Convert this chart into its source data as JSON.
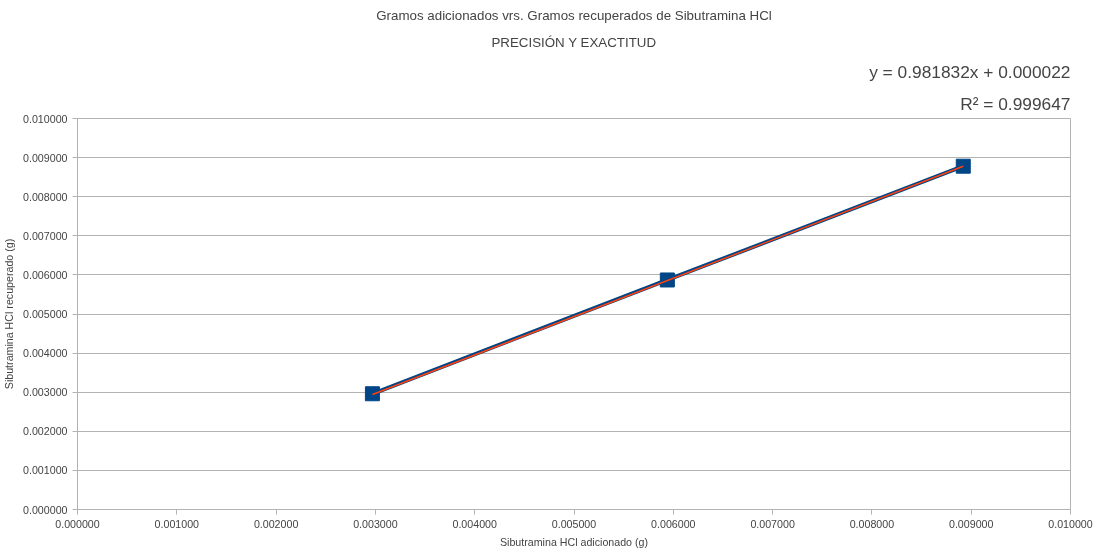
{
  "chart_data": {
    "type": "line",
    "title": "Gramos adicionados vrs. Gramos recuperados de Sibutramina HCl",
    "subtitle": "PRECISIÓN Y EXACTITUD",
    "xlabel": "Sibutramina HCl adicionado (g)",
    "ylabel": "Sibutramina HCl recuperado (g)",
    "x": [
      0.00297,
      0.00594,
      0.00892
    ],
    "series": [
      {
        "color": "#004586",
        "values": [
          0.00296,
          0.00587,
          0.00878
        ],
        "marker": "square"
      },
      {
        "type": "line",
        "color": "#ff420e",
        "x": [
          0.00297,
          0.00892
        ],
        "values": [
          0.00294,
          0.00878
        ],
        "marker": "none"
      }
    ],
    "annotations": [
      "y = 0.981832x + 0.000022",
      "R² = 0.999647"
    ],
    "xlim": [
      0,
      0.01
    ],
    "ylim": [
      0,
      0.01
    ],
    "xticks": [
      {
        "value": 0,
        "label": "0.000000"
      },
      {
        "value": 0.001,
        "label": "0.001000"
      },
      {
        "value": 0.002,
        "label": "0.002000"
      },
      {
        "value": 0.003,
        "label": "0.003000"
      },
      {
        "value": 0.004,
        "label": "0.004000"
      },
      {
        "value": 0.005,
        "label": "0.005000"
      },
      {
        "value": 0.006,
        "label": "0.006000"
      },
      {
        "value": 0.007,
        "label": "0.007000"
      },
      {
        "value": 0.008,
        "label": "0.008000"
      },
      {
        "value": 0.009,
        "label": "0.009000"
      },
      {
        "value": 0.01,
        "label": "0.010000"
      }
    ],
    "yticks": [
      {
        "value": 0,
        "label": "0.000000"
      },
      {
        "value": 0.001,
        "label": "0.001000"
      },
      {
        "value": 0.002,
        "label": "0.002000"
      },
      {
        "value": 0.003,
        "label": "0.003000"
      },
      {
        "value": 0.004,
        "label": "0.004000"
      },
      {
        "value": 0.005,
        "label": "0.005000"
      },
      {
        "value": 0.006,
        "label": "0.006000"
      },
      {
        "value": 0.007,
        "label": "0.007000"
      },
      {
        "value": 0.008,
        "label": "0.008000"
      },
      {
        "value": 0.009,
        "label": "0.009000"
      },
      {
        "value": 0.01,
        "label": "0.010000"
      }
    ],
    "grid": "y"
  }
}
